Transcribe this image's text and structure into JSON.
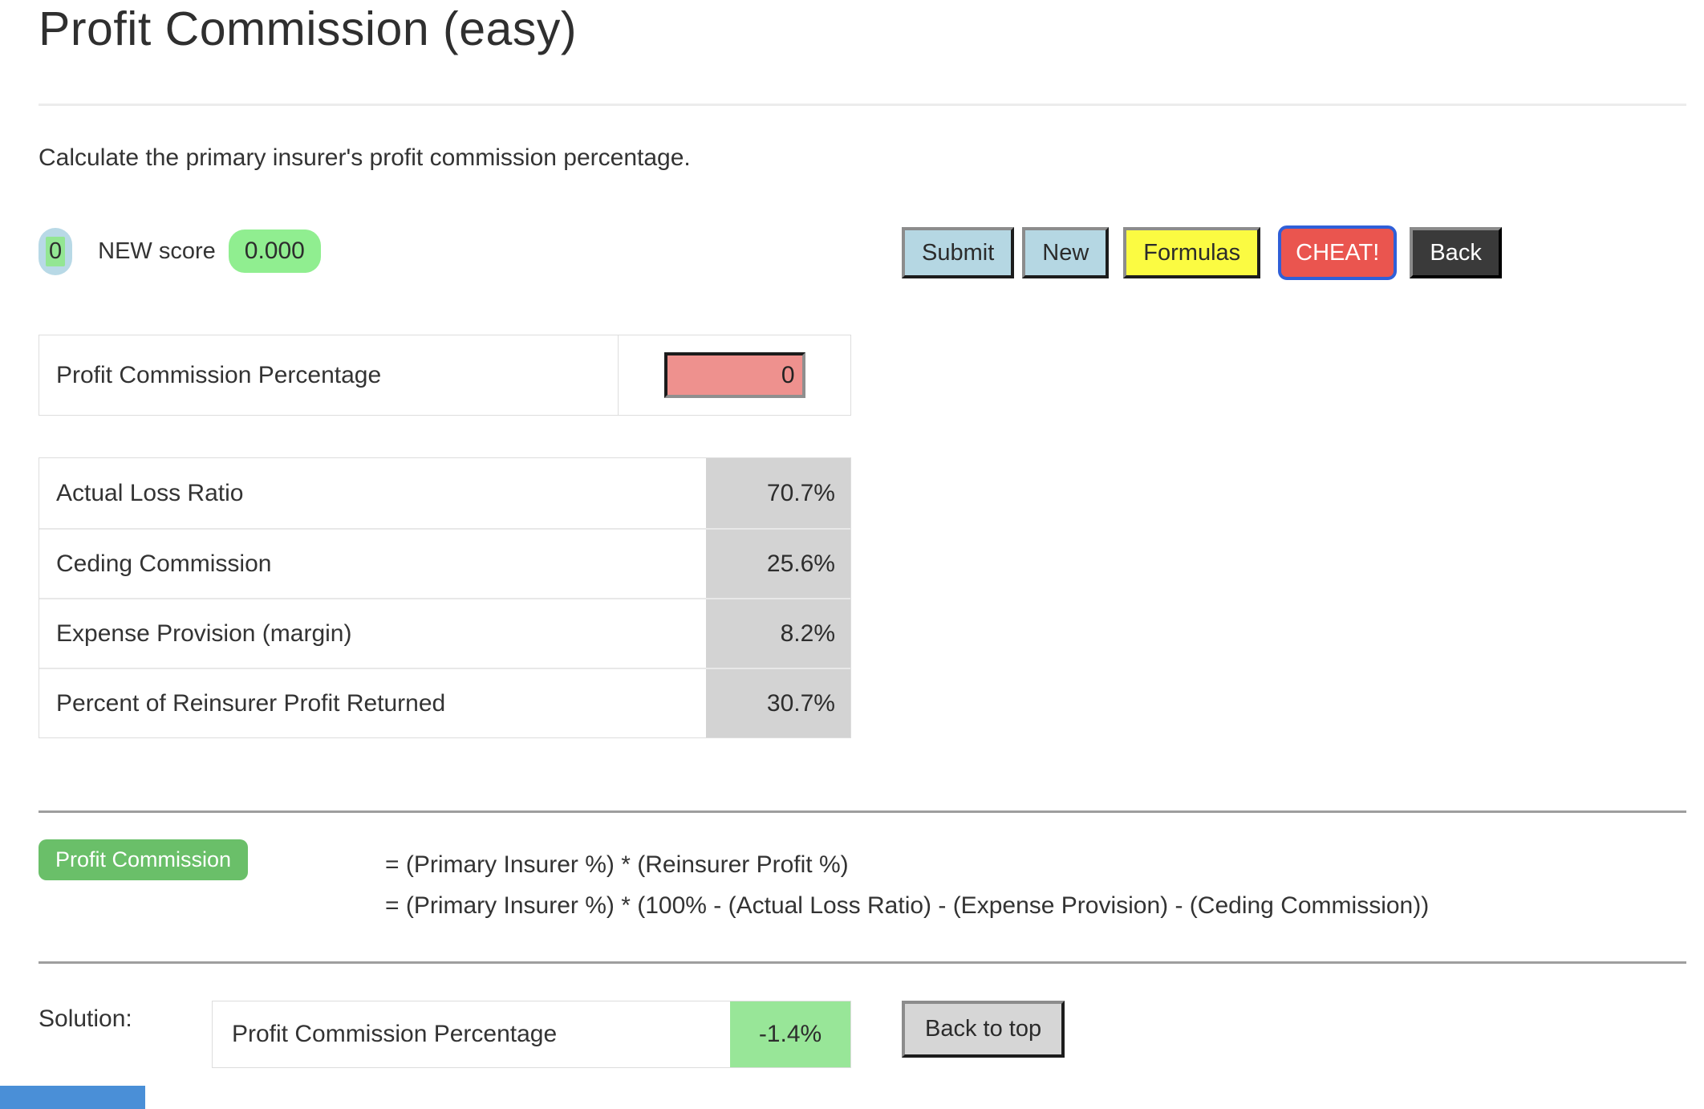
{
  "page": {
    "title": "Profit Commission (easy)",
    "instruction": "Calculate the primary insurer's profit commission percentage."
  },
  "score": {
    "attempts": "0",
    "label": "NEW score",
    "value": "0.000"
  },
  "toolbar": {
    "submit_label": "Submit",
    "new_label": "New",
    "formulas_label": "Formulas",
    "cheat_label": "CHEAT!",
    "back_label": "Back"
  },
  "answer": {
    "label": "Profit Commission Percentage",
    "value": "0"
  },
  "given_table": {
    "rows": [
      {
        "label": "Actual Loss Ratio",
        "value": "70.7%"
      },
      {
        "label": "Ceding Commission",
        "value": "25.6%"
      },
      {
        "label": "Expense Provision (margin)",
        "value": "8.2%"
      },
      {
        "label": "Percent of Reinsurer Profit Returned",
        "value": "30.7%"
      }
    ]
  },
  "formula": {
    "badge": "Profit Commission",
    "line1": "= (Primary Insurer %) * (Reinsurer Profit %)",
    "line2": "= (Primary Insurer %) * (100% - (Actual Loss Ratio) - (Expense Provision) - (Ceding Commission))"
  },
  "solution": {
    "heading": "Solution:",
    "label": "Profit Commission Percentage",
    "value": "-1.4%",
    "back_to_top_label": "Back to top"
  },
  "colors": {
    "button_blue": "#b5d7e3",
    "button_yellow": "#fbfb42",
    "button_red": "#ea554f",
    "cheat_border_blue": "#2f5fd8",
    "button_dark": "#3a3a3a",
    "input_red": "#ee918e",
    "value_cell_gray": "#d3d3d3",
    "score_pill_green": "#90ee90",
    "formula_badge_green": "#6abf69",
    "solution_green": "#98e698",
    "footer_bar_blue": "#4a8fd7"
  }
}
